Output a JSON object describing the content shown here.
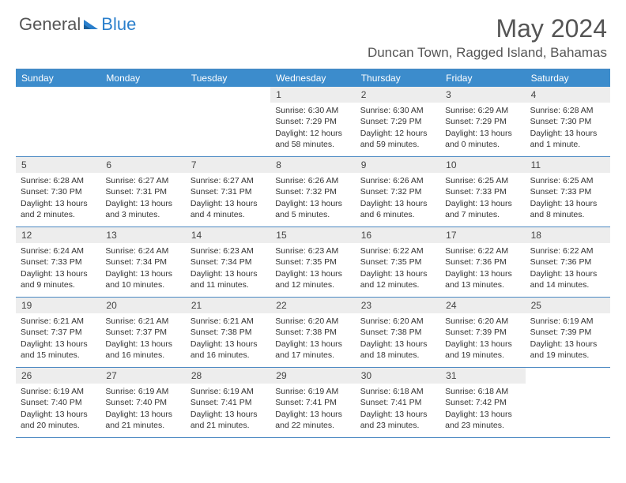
{
  "logo": {
    "text1": "General",
    "text2": "Blue"
  },
  "title": "May 2024",
  "location": "Duncan Town, Ragged Island, Bahamas",
  "header_bg": "#3c8ccc",
  "border_color": "#4a88c2",
  "daynum_bg": "#ededed",
  "weekdays": [
    "Sunday",
    "Monday",
    "Tuesday",
    "Wednesday",
    "Thursday",
    "Friday",
    "Saturday"
  ],
  "weeks": [
    [
      null,
      null,
      null,
      {
        "n": "1",
        "sr": "6:30 AM",
        "ss": "7:29 PM",
        "dl": "12 hours and 58 minutes."
      },
      {
        "n": "2",
        "sr": "6:30 AM",
        "ss": "7:29 PM",
        "dl": "12 hours and 59 minutes."
      },
      {
        "n": "3",
        "sr": "6:29 AM",
        "ss": "7:29 PM",
        "dl": "13 hours and 0 minutes."
      },
      {
        "n": "4",
        "sr": "6:28 AM",
        "ss": "7:30 PM",
        "dl": "13 hours and 1 minute."
      }
    ],
    [
      {
        "n": "5",
        "sr": "6:28 AM",
        "ss": "7:30 PM",
        "dl": "13 hours and 2 minutes."
      },
      {
        "n": "6",
        "sr": "6:27 AM",
        "ss": "7:31 PM",
        "dl": "13 hours and 3 minutes."
      },
      {
        "n": "7",
        "sr": "6:27 AM",
        "ss": "7:31 PM",
        "dl": "13 hours and 4 minutes."
      },
      {
        "n": "8",
        "sr": "6:26 AM",
        "ss": "7:32 PM",
        "dl": "13 hours and 5 minutes."
      },
      {
        "n": "9",
        "sr": "6:26 AM",
        "ss": "7:32 PM",
        "dl": "13 hours and 6 minutes."
      },
      {
        "n": "10",
        "sr": "6:25 AM",
        "ss": "7:33 PM",
        "dl": "13 hours and 7 minutes."
      },
      {
        "n": "11",
        "sr": "6:25 AM",
        "ss": "7:33 PM",
        "dl": "13 hours and 8 minutes."
      }
    ],
    [
      {
        "n": "12",
        "sr": "6:24 AM",
        "ss": "7:33 PM",
        "dl": "13 hours and 9 minutes."
      },
      {
        "n": "13",
        "sr": "6:24 AM",
        "ss": "7:34 PM",
        "dl": "13 hours and 10 minutes."
      },
      {
        "n": "14",
        "sr": "6:23 AM",
        "ss": "7:34 PM",
        "dl": "13 hours and 11 minutes."
      },
      {
        "n": "15",
        "sr": "6:23 AM",
        "ss": "7:35 PM",
        "dl": "13 hours and 12 minutes."
      },
      {
        "n": "16",
        "sr": "6:22 AM",
        "ss": "7:35 PM",
        "dl": "13 hours and 12 minutes."
      },
      {
        "n": "17",
        "sr": "6:22 AM",
        "ss": "7:36 PM",
        "dl": "13 hours and 13 minutes."
      },
      {
        "n": "18",
        "sr": "6:22 AM",
        "ss": "7:36 PM",
        "dl": "13 hours and 14 minutes."
      }
    ],
    [
      {
        "n": "19",
        "sr": "6:21 AM",
        "ss": "7:37 PM",
        "dl": "13 hours and 15 minutes."
      },
      {
        "n": "20",
        "sr": "6:21 AM",
        "ss": "7:37 PM",
        "dl": "13 hours and 16 minutes."
      },
      {
        "n": "21",
        "sr": "6:21 AM",
        "ss": "7:38 PM",
        "dl": "13 hours and 16 minutes."
      },
      {
        "n": "22",
        "sr": "6:20 AM",
        "ss": "7:38 PM",
        "dl": "13 hours and 17 minutes."
      },
      {
        "n": "23",
        "sr": "6:20 AM",
        "ss": "7:38 PM",
        "dl": "13 hours and 18 minutes."
      },
      {
        "n": "24",
        "sr": "6:20 AM",
        "ss": "7:39 PM",
        "dl": "13 hours and 19 minutes."
      },
      {
        "n": "25",
        "sr": "6:19 AM",
        "ss": "7:39 PM",
        "dl": "13 hours and 19 minutes."
      }
    ],
    [
      {
        "n": "26",
        "sr": "6:19 AM",
        "ss": "7:40 PM",
        "dl": "13 hours and 20 minutes."
      },
      {
        "n": "27",
        "sr": "6:19 AM",
        "ss": "7:40 PM",
        "dl": "13 hours and 21 minutes."
      },
      {
        "n": "28",
        "sr": "6:19 AM",
        "ss": "7:41 PM",
        "dl": "13 hours and 21 minutes."
      },
      {
        "n": "29",
        "sr": "6:19 AM",
        "ss": "7:41 PM",
        "dl": "13 hours and 22 minutes."
      },
      {
        "n": "30",
        "sr": "6:18 AM",
        "ss": "7:41 PM",
        "dl": "13 hours and 23 minutes."
      },
      {
        "n": "31",
        "sr": "6:18 AM",
        "ss": "7:42 PM",
        "dl": "13 hours and 23 minutes."
      },
      null
    ]
  ]
}
